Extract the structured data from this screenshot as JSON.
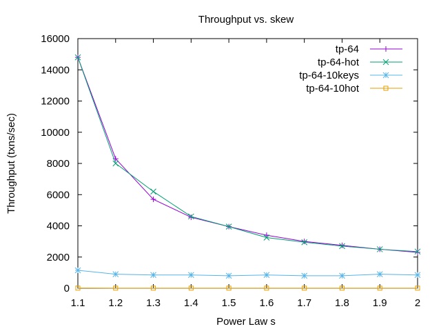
{
  "chart_data": {
    "type": "line",
    "title": "Throughput vs. skew",
    "xlabel": "Power Law s",
    "ylabel": "Throughput (txns/sec)",
    "xlim": [
      1.1,
      2.0
    ],
    "ylim": [
      0,
      16000
    ],
    "x_ticks": [
      "1.1",
      "1.2",
      "1.3",
      "1.4",
      "1.5",
      "1.6",
      "1.7",
      "1.8",
      "1.9",
      "2"
    ],
    "y_ticks": [
      "0",
      "2000",
      "4000",
      "6000",
      "8000",
      "10000",
      "12000",
      "14000",
      "16000"
    ],
    "grid": false,
    "legend_position": "top-right",
    "x": [
      1.1,
      1.2,
      1.3,
      1.4,
      1.5,
      1.6,
      1.7,
      1.8,
      1.9,
      2.0
    ],
    "series": [
      {
        "name": "tp-64",
        "marker": "plus",
        "color": "#9400d3",
        "values": [
          14800,
          8300,
          5700,
          4550,
          3950,
          3400,
          3000,
          2750,
          2500,
          2300
        ]
      },
      {
        "name": "tp-64-hot",
        "marker": "cross",
        "color": "#009e73",
        "values": [
          14800,
          8000,
          6200,
          4600,
          3950,
          3250,
          2950,
          2700,
          2500,
          2350
        ]
      },
      {
        "name": "tp-64-10keys",
        "marker": "star",
        "color": "#56b4e9",
        "values": [
          1150,
          900,
          850,
          850,
          800,
          850,
          800,
          800,
          900,
          850
        ]
      },
      {
        "name": "tp-64-10hot",
        "marker": "square",
        "color": "#e69f00",
        "values": [
          10,
          8,
          8,
          8,
          8,
          8,
          8,
          8,
          8,
          8
        ]
      }
    ]
  }
}
